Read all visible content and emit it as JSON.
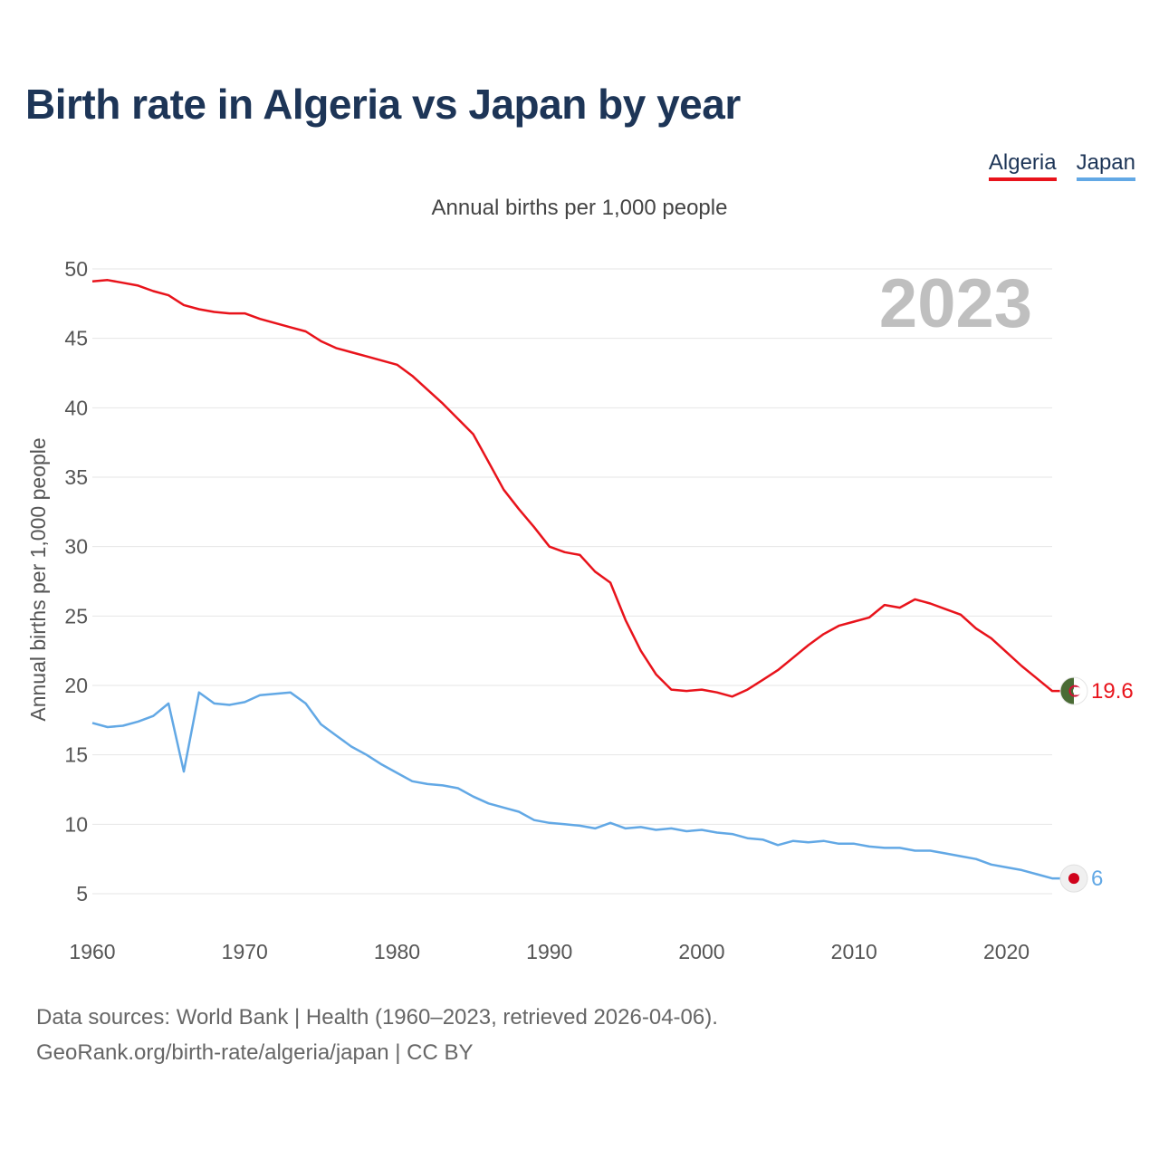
{
  "title": "Birth rate in Algeria vs Japan by year",
  "subtitle": "Annual births per 1,000 people",
  "footer": {
    "line1": "Data sources: World Bank | Health (1960–2023, retrieved 2026-04-06).",
    "line2": "GeoRank.org/birth-rate/algeria/japan | CC BY"
  },
  "colors": {
    "algeria": "#e8131b",
    "japan": "#62a8e5",
    "title": "#1d3557",
    "year_watermark": "#bfbfbf"
  },
  "chart_data": {
    "type": "line",
    "ylabel": "Annual births per 1,000 people",
    "xlim": [
      1960,
      2023
    ],
    "ylim": [
      5,
      50
    ],
    "x_ticks": [
      1960,
      1970,
      1980,
      1990,
      2000,
      2010,
      2020
    ],
    "y_ticks": [
      5,
      10,
      15,
      20,
      25,
      30,
      35,
      40,
      45,
      50
    ],
    "grid": true,
    "legend": "top-right",
    "watermark_year": "2023",
    "x": [
      1960,
      1961,
      1962,
      1963,
      1964,
      1965,
      1966,
      1967,
      1968,
      1969,
      1970,
      1971,
      1972,
      1973,
      1974,
      1975,
      1976,
      1977,
      1978,
      1979,
      1980,
      1981,
      1982,
      1983,
      1984,
      1985,
      1986,
      1987,
      1988,
      1989,
      1990,
      1991,
      1992,
      1993,
      1994,
      1995,
      1996,
      1997,
      1998,
      1999,
      2000,
      2001,
      2002,
      2003,
      2004,
      2005,
      2006,
      2007,
      2008,
      2009,
      2010,
      2011,
      2012,
      2013,
      2014,
      2015,
      2016,
      2017,
      2018,
      2019,
      2020,
      2021,
      2022,
      2023
    ],
    "series": [
      {
        "name": "Algeria",
        "color": "#e8131b",
        "end_label": "19.6",
        "flag_icon": "algeria-flag-icon",
        "values": [
          49.1,
          49.2,
          49.0,
          48.8,
          48.4,
          48.1,
          47.4,
          47.1,
          46.9,
          46.8,
          46.8,
          46.4,
          46.1,
          45.8,
          45.5,
          44.8,
          44.3,
          44.0,
          43.7,
          43.4,
          43.1,
          42.3,
          41.3,
          40.3,
          39.2,
          38.1,
          36.1,
          34.1,
          32.7,
          31.4,
          30.0,
          29.6,
          29.4,
          28.2,
          27.4,
          24.7,
          22.5,
          20.8,
          19.7,
          19.6,
          19.7,
          19.5,
          19.2,
          19.7,
          20.4,
          21.1,
          22.0,
          22.9,
          23.7,
          24.3,
          24.6,
          24.9,
          25.8,
          25.6,
          26.2,
          25.9,
          25.5,
          25.1,
          24.1,
          23.4,
          22.4,
          21.4,
          20.5,
          19.6
        ]
      },
      {
        "name": "Japan",
        "color": "#62a8e5",
        "end_label": "6",
        "flag_icon": "japan-flag-icon",
        "values": [
          17.3,
          17.0,
          17.1,
          17.4,
          17.8,
          18.7,
          13.8,
          19.5,
          18.7,
          18.6,
          18.8,
          19.3,
          19.4,
          19.5,
          18.7,
          17.2,
          16.4,
          15.6,
          15.0,
          14.3,
          13.7,
          13.1,
          12.9,
          12.8,
          12.6,
          12.0,
          11.5,
          11.2,
          10.9,
          10.3,
          10.1,
          10.0,
          9.9,
          9.7,
          10.1,
          9.7,
          9.8,
          9.6,
          9.7,
          9.5,
          9.6,
          9.4,
          9.3,
          9.0,
          8.9,
          8.5,
          8.8,
          8.7,
          8.8,
          8.6,
          8.6,
          8.4,
          8.3,
          8.3,
          8.1,
          8.1,
          7.9,
          7.7,
          7.5,
          7.1,
          6.9,
          6.7,
          6.4,
          6.1
        ]
      }
    ]
  }
}
